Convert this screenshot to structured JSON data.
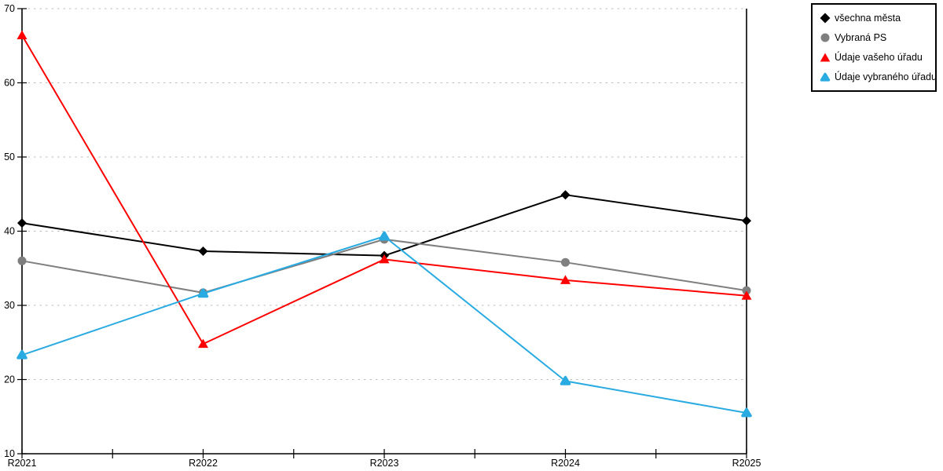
{
  "chart_data": {
    "type": "line",
    "title": "",
    "xlabel": "",
    "ylabel": "",
    "categories": [
      "R2021",
      "R2022",
      "R2023",
      "R2024",
      "R2025"
    ],
    "series": [
      {
        "name": "všechna města",
        "color": "#000000",
        "marker": "diamond",
        "values": [
          41.1,
          37.3,
          36.7,
          44.9,
          41.4
        ]
      },
      {
        "name": "Vybraná PS",
        "color": "#7f7f7f",
        "marker": "circle",
        "values": [
          36.0,
          31.7,
          38.9,
          35.8,
          32.0
        ]
      },
      {
        "name": "Údaje vašeho úřadu",
        "color": "#ff0000",
        "marker": "triangle",
        "values": [
          66.4,
          24.8,
          36.2,
          33.4,
          31.3
        ]
      },
      {
        "name": "Údaje vybraného úřadu",
        "color": "#29abe2",
        "marker": "triangle-rounded",
        "values": [
          23.3,
          31.6,
          39.3,
          19.8,
          15.5
        ]
      }
    ],
    "ylim": [
      10,
      70
    ],
    "yticks": [
      10,
      20,
      30,
      40,
      50,
      60,
      70
    ],
    "grid": "horizontal-dashed",
    "gridline_color": "#bdbdbd",
    "axis_color": "#000000",
    "legend_position": "top-right"
  }
}
